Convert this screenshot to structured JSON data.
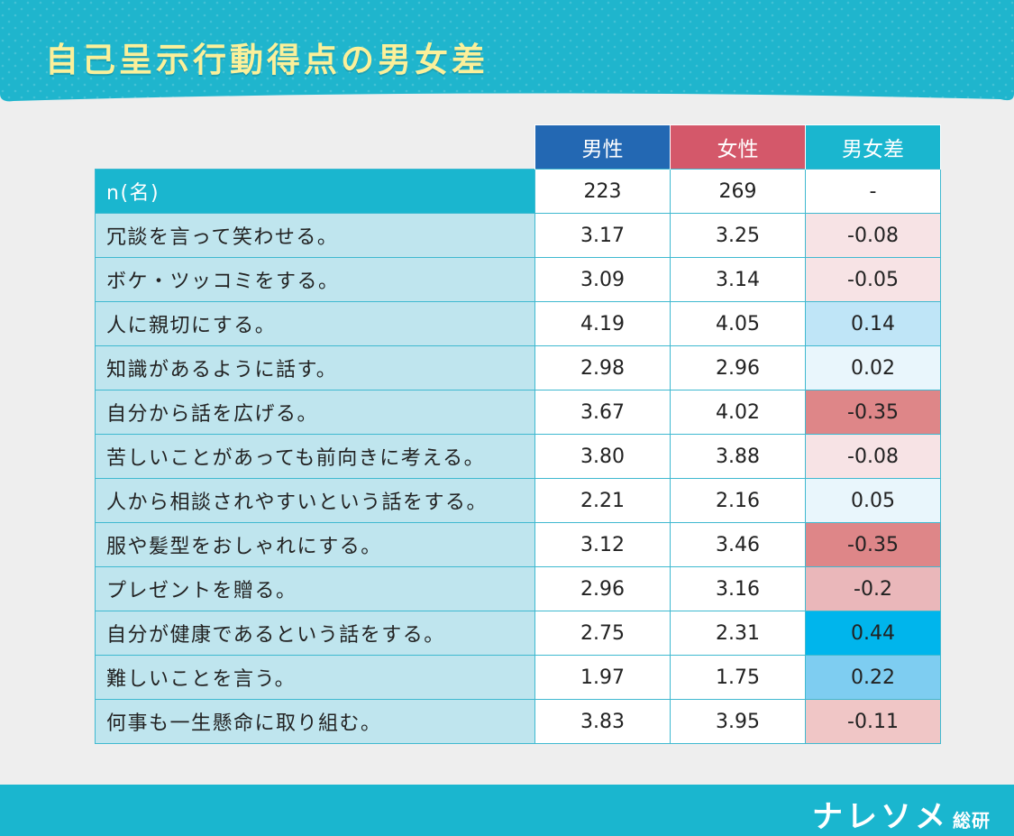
{
  "header": {
    "title": "自己呈示行動得点の男女差"
  },
  "footer": {
    "brand_main": "ナレソメ",
    "brand_sub": "総研"
  },
  "colors": {
    "header_bg": "#1fb5cd",
    "title": "#fbf09a",
    "male": "#2368b3",
    "female": "#d4586a",
    "diff_header": "#1ab6cf",
    "label_bg": "#bfe5ee",
    "diff_neg_scale": [
      "#f7e3e5",
      "#eab7ba",
      "#de8688"
    ],
    "diff_pos_scale": [
      "#e9f6fc",
      "#bfe5f7",
      "#7ecdf1",
      "#00b5ec"
    ]
  },
  "chart_data": {
    "type": "table",
    "columns": [
      "男性",
      "女性",
      "男女差"
    ],
    "n_row": {
      "label": "n(名)",
      "male": "223",
      "female": "269",
      "diff": "-"
    },
    "rows": [
      {
        "label": "冗談を言って笑わせる。",
        "male": "3.17",
        "female": "3.25",
        "diff": "-0.08",
        "diff_value": -0.08
      },
      {
        "label": "ボケ・ツッコミをする。",
        "male": "3.09",
        "female": "3.14",
        "diff": "-0.05",
        "diff_value": -0.05
      },
      {
        "label": "人に親切にする。",
        "male": "4.19",
        "female": "4.05",
        "diff": "0.14",
        "diff_value": 0.14
      },
      {
        "label": "知識があるように話す。",
        "male": "2.98",
        "female": "2.96",
        "diff": "0.02",
        "diff_value": 0.02
      },
      {
        "label": "自分から話を広げる。",
        "male": "3.67",
        "female": "4.02",
        "diff": "-0.35",
        "diff_value": -0.35
      },
      {
        "label": "苦しいことがあっても前向きに考える。",
        "male": "3.80",
        "female": "3.88",
        "diff": "-0.08",
        "diff_value": -0.08
      },
      {
        "label": "人から相談されやすいという話をする。",
        "male": "2.21",
        "female": "2.16",
        "diff": "0.05",
        "diff_value": 0.05
      },
      {
        "label": "服や髪型をおしゃれにする。",
        "male": "3.12",
        "female": "3.46",
        "diff": "-0.35",
        "diff_value": -0.35
      },
      {
        "label": "プレゼントを贈る。",
        "male": "2.96",
        "female": "3.16",
        "diff": "-0.2",
        "diff_value": -0.2
      },
      {
        "label": "自分が健康であるという話をする。",
        "male": "2.75",
        "female": "2.31",
        "diff": "0.44",
        "diff_value": 0.44
      },
      {
        "label": "難しいことを言う。",
        "male": "1.97",
        "female": "1.75",
        "diff": "0.22",
        "diff_value": 0.22
      },
      {
        "label": "何事も一生懸命に取り組む。",
        "male": "3.83",
        "female": "3.95",
        "diff": "-0.11",
        "diff_value": -0.11
      }
    ]
  }
}
